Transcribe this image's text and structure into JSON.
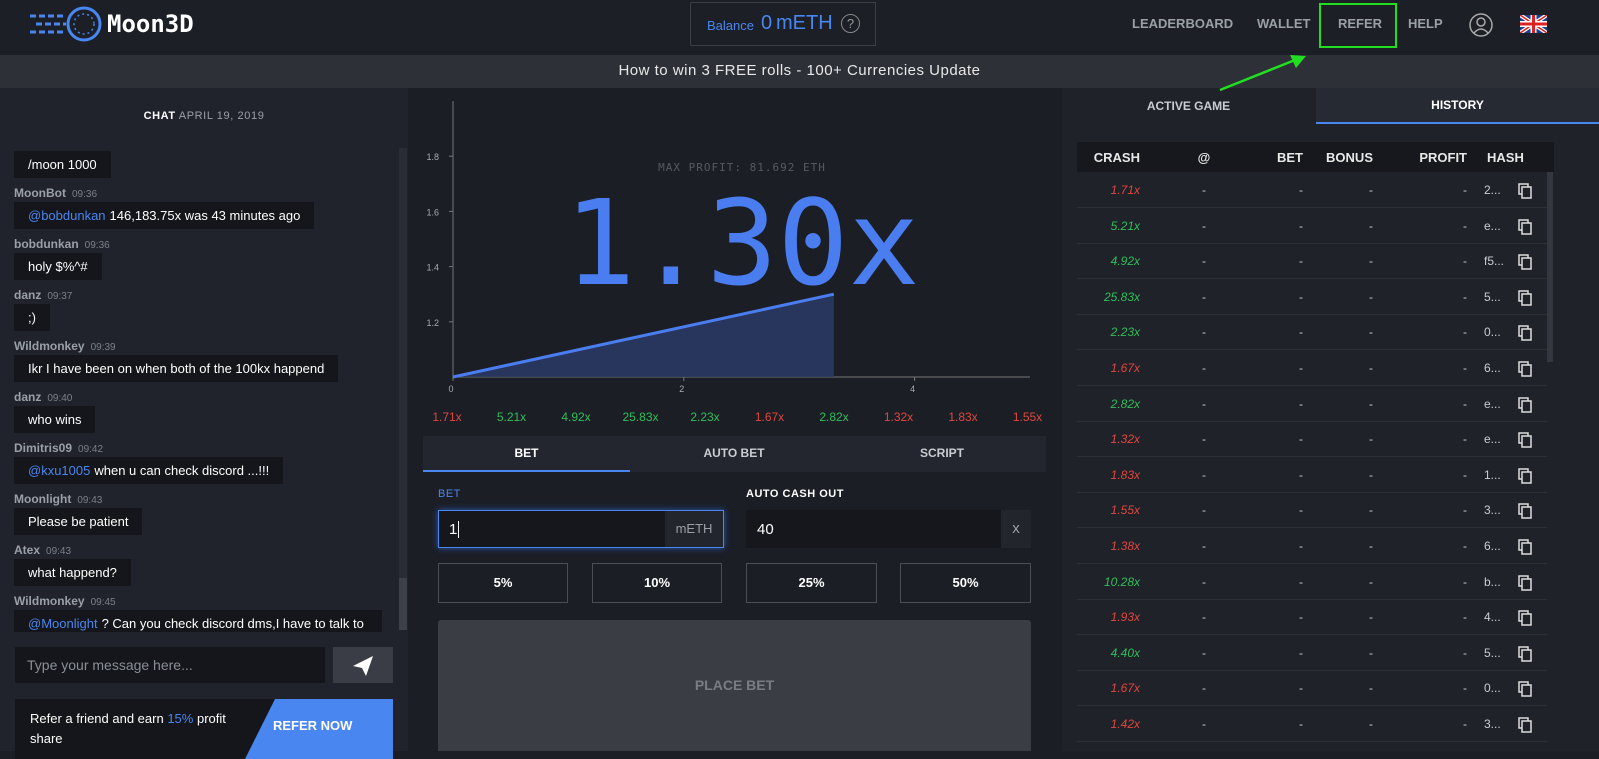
{
  "header": {
    "logo": "Moon3D",
    "balance_label": "Balance",
    "balance_value": "0",
    "balance_unit": "mETH",
    "help": "?",
    "nav": [
      "LEADERBOARD",
      "WALLET",
      "REFER",
      "HELP"
    ]
  },
  "banner": "How to win 3 FREE rolls - 100+ Currencies Update",
  "chat": {
    "title": "CHAT",
    "date": "APRIL 19, 2019",
    "messages": [
      {
        "text": "/moon 1000"
      },
      {
        "user": "MoonBot",
        "time": "09:36",
        "mention": "@bobdunkan",
        "text": "146,183.75x was 43 minutes ago"
      },
      {
        "user": "bobdunkan",
        "time": "09:36",
        "text": "holy $%^#"
      },
      {
        "user": "danz",
        "time": "09:37",
        "text": ";)"
      },
      {
        "user": "Wildmonkey",
        "time": "09:39",
        "text": "Ikr I have been on when both of the 100kx happend"
      },
      {
        "user": "danz",
        "time": "09:40",
        "text": "who wins"
      },
      {
        "user": "Dimitris09",
        "time": "09:42",
        "mention": "@kxu1005",
        "text": "when u can check discord ...!!!"
      },
      {
        "user": "Moonlight",
        "time": "09:43",
        "text": "Please be patient"
      },
      {
        "user": "Atex",
        "time": "09:43",
        "text": "what happend?"
      },
      {
        "user": "Wildmonkey",
        "time": "09:45",
        "mention": "@Moonlight",
        "text": "? Can you check discord dms,I have to talk to you about someone ."
      }
    ],
    "input_placeholder": "Type your message here...",
    "refer_text": "Refer a friend and earn",
    "refer_highlight": "15%",
    "refer_text_end": "profit share",
    "refer_button": "REFER NOW"
  },
  "game": {
    "max_profit": "MAX PROFIT: 81.692 ETH",
    "multiplier": "1.30x",
    "chart": {
      "xlim": [
        0,
        5
      ],
      "ylim": [
        1,
        2
      ],
      "xticks": [
        0,
        2,
        4
      ],
      "yticks": [
        1.2,
        1.4,
        1.6,
        1.8
      ],
      "curve": {
        "x": [
          0,
          3.3
        ],
        "y": [
          1,
          1.3
        ]
      },
      "color": "#4a7ef0"
    },
    "recent": [
      {
        "value": "1.71x",
        "color": "#e0473f"
      },
      {
        "value": "5.21x",
        "color": "#2fbf5a"
      },
      {
        "value": "4.92x",
        "color": "#2fbf5a"
      },
      {
        "value": "25.83x",
        "color": "#2fbf5a"
      },
      {
        "value": "2.23x",
        "color": "#2fbf5a"
      },
      {
        "value": "1.67x",
        "color": "#e0473f"
      },
      {
        "value": "2.82x",
        "color": "#2fbf5a"
      },
      {
        "value": "1.32x",
        "color": "#e0473f"
      },
      {
        "value": "1.83x",
        "color": "#e0473f"
      },
      {
        "value": "1.55x",
        "color": "#e0473f"
      }
    ]
  },
  "bet": {
    "tabs": [
      "BET",
      "AUTO BET",
      "SCRIPT"
    ],
    "bet_label": "BET",
    "bet_value": "1",
    "bet_unit": "mETH",
    "cashout_label": "AUTO CASH OUT",
    "cashout_value": "40",
    "cashout_unit": "x",
    "quick": [
      "5%",
      "10%",
      "25%",
      "50%"
    ],
    "place": "PLACE BET"
  },
  "history": {
    "tabs": [
      "ACTIVE GAME",
      "HISTORY"
    ],
    "columns": [
      "CRASH",
      "@",
      "BET",
      "BONUS",
      "PROFIT",
      "HASH"
    ],
    "rows": [
      {
        "cells": [
          "1.71x",
          "-",
          "-",
          "-",
          "-",
          "2..."
        ],
        "color": "#e0473f"
      },
      {
        "cells": [
          "5.21x",
          "-",
          "-",
          "-",
          "-",
          "e..."
        ],
        "color": "#2fbf5a"
      },
      {
        "cells": [
          "4.92x",
          "-",
          "-",
          "-",
          "-",
          "f5..."
        ],
        "color": "#2fbf5a"
      },
      {
        "cells": [
          "25.83x",
          "-",
          "-",
          "-",
          "-",
          "5..."
        ],
        "color": "#2fbf5a"
      },
      {
        "cells": [
          "2.23x",
          "-",
          "-",
          "-",
          "-",
          "0..."
        ],
        "color": "#2fbf5a"
      },
      {
        "cells": [
          "1.67x",
          "-",
          "-",
          "-",
          "-",
          "6..."
        ],
        "color": "#e0473f"
      },
      {
        "cells": [
          "2.82x",
          "-",
          "-",
          "-",
          "-",
          "e..."
        ],
        "color": "#2fbf5a"
      },
      {
        "cells": [
          "1.32x",
          "-",
          "-",
          "-",
          "-",
          "e..."
        ],
        "color": "#e0473f"
      },
      {
        "cells": [
          "1.83x",
          "-",
          "-",
          "-",
          "-",
          "1..."
        ],
        "color": "#e0473f"
      },
      {
        "cells": [
          "1.55x",
          "-",
          "-",
          "-",
          "-",
          "3..."
        ],
        "color": "#e0473f"
      },
      {
        "cells": [
          "1.38x",
          "-",
          "-",
          "-",
          "-",
          "6..."
        ],
        "color": "#e0473f"
      },
      {
        "cells": [
          "10.28x",
          "-",
          "-",
          "-",
          "-",
          "b..."
        ],
        "color": "#2fbf5a"
      },
      {
        "cells": [
          "1.93x",
          "-",
          "-",
          "-",
          "-",
          "4..."
        ],
        "color": "#e0473f"
      },
      {
        "cells": [
          "4.40x",
          "-",
          "-",
          "-",
          "-",
          "5..."
        ],
        "color": "#2fbf5a"
      },
      {
        "cells": [
          "1.67x",
          "-",
          "-",
          "-",
          "-",
          "0..."
        ],
        "color": "#e0473f"
      },
      {
        "cells": [
          "1.42x",
          "-",
          "-",
          "-",
          "-",
          "3..."
        ],
        "color": "#e0473f"
      }
    ]
  }
}
